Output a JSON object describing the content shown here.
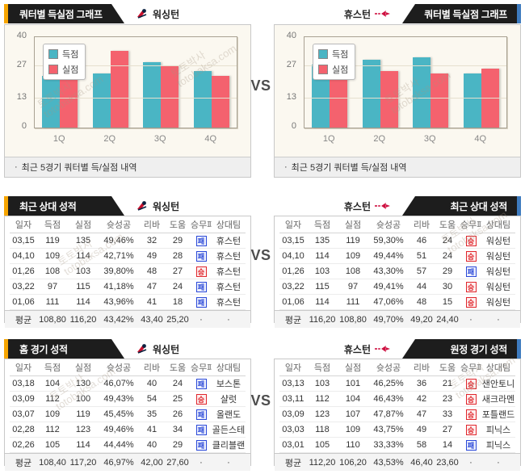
{
  "page": {
    "vs": "VS"
  },
  "watermark": {
    "line1": "토토박사",
    "line2": "totobaksa.com"
  },
  "colors": {
    "scored": "#4AB5C4",
    "allowed": "#F4626E",
    "win": "#E0262C",
    "loss": "#2B49D8",
    "accent_left": "#F7A500",
    "accent_right": "#3E7BBF",
    "tab_background": "#1D1D1D"
  },
  "sections": {
    "charts": {
      "note_bullet": "·",
      "left": {
        "tab_title": "쿼터별 득실점 그래프",
        "team": "워싱턴",
        "note": "최근 5경기 쿼터별 득/실점 내역"
      },
      "right": {
        "tab_title": "쿼터별 득실점 그래프",
        "team": "휴스턴",
        "note": "최근 5경기 쿼터별 득/실점 내역"
      }
    }
  },
  "chart_data": [
    {
      "type": "bar",
      "title": "쿼터별 득실점 그래프 — 워싱턴",
      "categories": [
        "1Q",
        "2Q",
        "3Q",
        "4Q"
      ],
      "series": [
        {
          "name": "득점",
          "values": [
            23,
            24,
            29,
            25
          ],
          "color": "#4AB5C4"
        },
        {
          "name": "실점",
          "values": [
            32,
            34,
            27,
            23
          ],
          "color": "#F4626E"
        }
      ],
      "xlabel": "",
      "ylabel": "",
      "ylim": [
        0,
        40
      ],
      "yticks": [
        0,
        13,
        27,
        40
      ],
      "grid": true,
      "legend_position": "top-left"
    },
    {
      "type": "bar",
      "title": "쿼터별 득실점 그래프 — 휴스턴",
      "categories": [
        "1Q",
        "2Q",
        "3Q",
        "4Q"
      ],
      "series": [
        {
          "name": "득점",
          "values": [
            28,
            30,
            31,
            24
          ],
          "color": "#4AB5C4"
        },
        {
          "name": "실점",
          "values": [
            30,
            25,
            24,
            26
          ],
          "color": "#F4626E"
        }
      ],
      "xlabel": "",
      "ylabel": "",
      "ylim": [
        0,
        40
      ],
      "yticks": [
        0,
        13,
        27,
        40
      ],
      "grid": true,
      "legend_position": "top-left"
    }
  ],
  "tables": {
    "columns": [
      "일자",
      "득점",
      "실점",
      "슛성공",
      "리바",
      "도움",
      "승무패",
      "상대팀"
    ],
    "badge": {
      "win": "승",
      "loss": "패"
    },
    "middle_left": {
      "tab_title": "최근 상대 성적",
      "team": "워싱턴",
      "rows": [
        [
          "03,15",
          "119",
          "135",
          "49,46%",
          "32",
          "29",
          "L",
          "휴스턴"
        ],
        [
          "04,10",
          "109",
          "114",
          "42,71%",
          "49",
          "28",
          "L",
          "휴스턴"
        ],
        [
          "01,26",
          "108",
          "103",
          "39,80%",
          "48",
          "27",
          "W",
          "휴스턴"
        ],
        [
          "03,22",
          "97",
          "115",
          "41,18%",
          "47",
          "24",
          "L",
          "휴스턴"
        ],
        [
          "01,06",
          "111",
          "114",
          "43,96%",
          "41",
          "18",
          "L",
          "휴스턴"
        ]
      ],
      "avg": [
        "평균",
        "108,80",
        "116,20",
        "43,42%",
        "43,40",
        "25,20",
        "·",
        "·"
      ]
    },
    "middle_right": {
      "tab_title": "최근 상대 성적",
      "team": "휴스턴",
      "rows": [
        [
          "03,15",
          "135",
          "119",
          "59,30%",
          "46",
          "24",
          "W",
          "워싱턴"
        ],
        [
          "04,10",
          "114",
          "109",
          "49,44%",
          "51",
          "24",
          "W",
          "워싱턴"
        ],
        [
          "01,26",
          "103",
          "108",
          "43,30%",
          "57",
          "29",
          "L",
          "워싱턴"
        ],
        [
          "03,22",
          "115",
          "97",
          "49,41%",
          "44",
          "30",
          "W",
          "워싱턴"
        ],
        [
          "01,06",
          "114",
          "111",
          "47,06%",
          "48",
          "15",
          "W",
          "워싱턴"
        ]
      ],
      "avg": [
        "평균",
        "116,20",
        "108,80",
        "49,70%",
        "49,20",
        "24,40",
        "·",
        "·"
      ]
    },
    "bottom_left": {
      "tab_title": "홈 경기 성적",
      "team": "워싱턴",
      "rows": [
        [
          "03,18",
          "104",
          "130",
          "46,07%",
          "40",
          "24",
          "L",
          "보스톤"
        ],
        [
          "03,09",
          "112",
          "100",
          "49,43%",
          "54",
          "25",
          "W",
          "샬럿"
        ],
        [
          "03,07",
          "109",
          "119",
          "45,45%",
          "35",
          "26",
          "L",
          "올랜도"
        ],
        [
          "02,28",
          "112",
          "123",
          "49,46%",
          "41",
          "34",
          "L",
          "골든스테"
        ],
        [
          "02,26",
          "105",
          "114",
          "44,44%",
          "40",
          "29",
          "L",
          "클리블랜"
        ]
      ],
      "avg": [
        "평균",
        "108,40",
        "117,20",
        "46,97%",
        "42,00",
        "27,60",
        "·",
        "·"
      ]
    },
    "bottom_right": {
      "tab_title": "원정 경기 성적",
      "team": "휴스턴",
      "rows": [
        [
          "03,13",
          "103",
          "101",
          "46,25%",
          "36",
          "21",
          "W",
          "샌안토니"
        ],
        [
          "03,11",
          "112",
          "104",
          "46,43%",
          "42",
          "23",
          "W",
          "새크라멘"
        ],
        [
          "03,09",
          "123",
          "107",
          "47,87%",
          "47",
          "33",
          "W",
          "포틀랜드"
        ],
        [
          "03,03",
          "118",
          "109",
          "43,75%",
          "49",
          "27",
          "W",
          "피닉스"
        ],
        [
          "03,01",
          "105",
          "110",
          "33,33%",
          "58",
          "14",
          "L",
          "피닉스"
        ]
      ],
      "avg": [
        "평균",
        "112,20",
        "106,20",
        "43,53%",
        "46,40",
        "23,60",
        "·",
        "·"
      ]
    }
  }
}
